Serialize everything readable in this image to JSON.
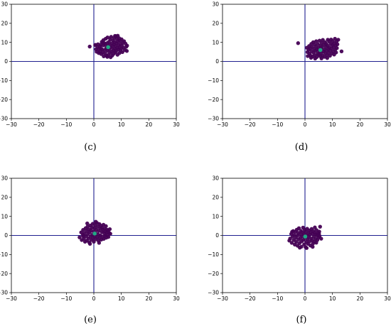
{
  "chart_data": [
    {
      "type": "scatter",
      "caption": "(c)",
      "xlim": [
        -30,
        30
      ],
      "ylim": [
        -30,
        30
      ],
      "xticks": [
        -30,
        -20,
        -10,
        0,
        10,
        20,
        30
      ],
      "yticks": [
        -30,
        -20,
        -10,
        0,
        10,
        20,
        30
      ],
      "reference_lines": {
        "x": 0,
        "y": 0,
        "color": "#1f1f8f"
      },
      "grid": false,
      "colors": {
        "points": "#440154",
        "center": "#22a884",
        "axes_lines": "#1f1f8f"
      },
      "center": [
        5.2,
        7.5
      ],
      "points": [
        [
          -1.5,
          7.8
        ],
        [
          0.6,
          8.7
        ],
        [
          0.8,
          6.4
        ],
        [
          0.5,
          8.6
        ],
        [
          1,
          5.1
        ],
        [
          1.3,
          7.6
        ],
        [
          1.5,
          9
        ],
        [
          1.8,
          6.5
        ],
        [
          1.8,
          4.4
        ],
        [
          2.2,
          7.8
        ],
        [
          2.2,
          5.2
        ],
        [
          2.5,
          8.8
        ],
        [
          2.7,
          3.9
        ],
        [
          2.9,
          10.3
        ],
        [
          3,
          6.3
        ],
        [
          3.2,
          4.8
        ],
        [
          3.4,
          8.4
        ],
        [
          3.5,
          11.2
        ],
        [
          3.6,
          2.7
        ],
        [
          3.8,
          9.5
        ],
        [
          4,
          6
        ],
        [
          4.1,
          4.2
        ],
        [
          4.3,
          8.7
        ],
        [
          4.3,
          11.9
        ],
        [
          4.5,
          7
        ],
        [
          4.6,
          3
        ],
        [
          4.8,
          9.6
        ],
        [
          5,
          5.5
        ],
        [
          5,
          12.6
        ],
        [
          5.2,
          7.9
        ],
        [
          5.3,
          3.4
        ],
        [
          5.5,
          10.3
        ],
        [
          5.6,
          6.4
        ],
        [
          5.8,
          8.7
        ],
        [
          5.9,
          4.5
        ],
        [
          6,
          11.6
        ],
        [
          6.2,
          7.3
        ],
        [
          6.3,
          12.9
        ],
        [
          6.5,
          5.2
        ],
        [
          6.6,
          9.5
        ],
        [
          6.7,
          3.1
        ],
        [
          6.8,
          7.9
        ],
        [
          7,
          11
        ],
        [
          7.1,
          6
        ],
        [
          7.2,
          4
        ],
        [
          7.3,
          8.9
        ],
        [
          7.4,
          12.3
        ],
        [
          7.6,
          6.7
        ],
        [
          7.6,
          10.2
        ],
        [
          7.8,
          4.8
        ],
        [
          7.9,
          8.1
        ],
        [
          8,
          13.3
        ],
        [
          8.1,
          5.5
        ],
        [
          8.3,
          9.5
        ],
        [
          8.4,
          11.8
        ],
        [
          8.5,
          7.1
        ],
        [
          8.6,
          3.5
        ],
        [
          8.8,
          10.5
        ],
        [
          8.9,
          6.3
        ],
        [
          9,
          8.6
        ],
        [
          9.2,
          12.2
        ],
        [
          9.3,
          4.4
        ],
        [
          9.4,
          7.5
        ],
        [
          9.5,
          10.9
        ],
        [
          9.7,
          5.8
        ],
        [
          9.8,
          9.2
        ],
        [
          10,
          6.8
        ],
        [
          10.1,
          11.6
        ],
        [
          10.3,
          8.2
        ],
        [
          10.4,
          4.9
        ],
        [
          10.6,
          9.9
        ],
        [
          10.8,
          7.1
        ],
        [
          11.3,
          6
        ],
        [
          11.5,
          9.4
        ],
        [
          11.8,
          7.7
        ],
        [
          12,
          5.5
        ],
        [
          12.1,
          8.3
        ],
        [
          2.6,
          6.7
        ],
        [
          3.3,
          9.9
        ],
        [
          4.9,
          2.4
        ],
        [
          6.1,
          2.2
        ],
        [
          7.7,
          13.4
        ],
        [
          8.7,
          13.5
        ],
        [
          11,
          10.6
        ]
      ]
    },
    {
      "type": "scatter",
      "caption": "(d)",
      "xlim": [
        -30,
        30
      ],
      "ylim": [
        -30,
        30
      ],
      "xticks": [
        -30,
        -20,
        -10,
        0,
        10,
        20,
        30
      ],
      "yticks": [
        -30,
        -20,
        -10,
        0,
        10,
        20,
        30
      ],
      "reference_lines": {
        "x": 0,
        "y": 0,
        "color": "#1f1f8f"
      },
      "grid": false,
      "colors": {
        "points": "#440154",
        "center": "#22a884",
        "axes_lines": "#1f1f8f"
      },
      "center": [
        5.6,
        6
      ],
      "points": [
        [
          -2.5,
          9.6
        ],
        [
          0.7,
          7.2
        ],
        [
          0.9,
          4.9
        ],
        [
          1,
          2.8
        ],
        [
          1.3,
          6.1
        ],
        [
          1.5,
          8.1
        ],
        [
          1.7,
          4.1
        ],
        [
          1.9,
          6.8
        ],
        [
          2,
          3
        ],
        [
          2.3,
          9.2
        ],
        [
          2.4,
          5.4
        ],
        [
          2.6,
          7.6
        ],
        [
          2.8,
          2.6
        ],
        [
          3,
          10.1
        ],
        [
          3.1,
          4.6
        ],
        [
          3.3,
          6.6
        ],
        [
          3.5,
          8.9
        ],
        [
          3.6,
          3.3
        ],
        [
          3.8,
          5.5
        ],
        [
          4,
          7.8
        ],
        [
          4.1,
          10.6
        ],
        [
          4.3,
          2.3
        ],
        [
          4.4,
          6.2
        ],
        [
          4.6,
          4.1
        ],
        [
          4.7,
          9.1
        ],
        [
          4.9,
          7.1
        ],
        [
          5,
          3.5
        ],
        [
          5.2,
          5.3
        ],
        [
          5.3,
          10.9
        ],
        [
          5.5,
          8.3
        ],
        [
          5.6,
          2.7
        ],
        [
          5.8,
          6.6
        ],
        [
          5.9,
          4.4
        ],
        [
          6.1,
          9.7
        ],
        [
          6.2,
          7.6
        ],
        [
          6.4,
          3.1
        ],
        [
          6.5,
          11.3
        ],
        [
          6.7,
          5.2
        ],
        [
          6.8,
          8.7
        ],
        [
          7,
          6.2
        ],
        [
          7.1,
          2.4
        ],
        [
          7.3,
          10.1
        ],
        [
          7.4,
          4.3
        ],
        [
          7.6,
          7.5
        ],
        [
          7.7,
          9.2
        ],
        [
          7.9,
          5.6
        ],
        [
          8,
          3.3
        ],
        [
          8.2,
          8.4
        ],
        [
          8.3,
          11.4
        ],
        [
          8.5,
          6.5
        ],
        [
          8.6,
          4.5
        ],
        [
          8.8,
          10.4
        ],
        [
          8.9,
          7.4
        ],
        [
          9.1,
          3
        ],
        [
          9.2,
          5.7
        ],
        [
          9.4,
          9.2
        ],
        [
          9.5,
          11.5
        ],
        [
          9.7,
          6.8
        ],
        [
          9.8,
          4.2
        ],
        [
          10,
          8.6
        ],
        [
          10.1,
          10.6
        ],
        [
          10.3,
          5.3
        ],
        [
          10.4,
          7.6
        ],
        [
          10.6,
          3.6
        ],
        [
          10.7,
          9.6
        ],
        [
          10.9,
          11.9
        ],
        [
          11,
          6.2
        ],
        [
          11.2,
          8.4
        ],
        [
          11.3,
          4.7
        ],
        [
          11.5,
          10.5
        ],
        [
          11.6,
          7
        ],
        [
          11.8,
          9
        ],
        [
          12.1,
          11.4
        ],
        [
          13.3,
          5.3
        ],
        [
          2.2,
          1.9
        ],
        [
          3.7,
          1.5
        ],
        [
          6,
          1.6
        ],
        [
          8.1,
          1.8
        ]
      ]
    },
    {
      "type": "scatter",
      "caption": "(e)",
      "xlim": [
        -30,
        30
      ],
      "ylim": [
        -30,
        30
      ],
      "xticks": [
        -30,
        -20,
        -10,
        0,
        10,
        20,
        30
      ],
      "yticks": [
        -30,
        -20,
        -10,
        0,
        10,
        20,
        30
      ],
      "reference_lines": {
        "x": 0,
        "y": 0,
        "color": "#1f1f8f"
      },
      "grid": false,
      "colors": {
        "points": "#440154",
        "center": "#22a884",
        "axes_lines": "#1f1f8f"
      },
      "center": [
        0.3,
        1
      ],
      "points": [
        [
          -5.2,
          -1
        ],
        [
          -4.6,
          1.6
        ],
        [
          -4.4,
          -2.4
        ],
        [
          -4,
          0.4
        ],
        [
          -3.9,
          2.9
        ],
        [
          -3.6,
          -1.6
        ],
        [
          -3.4,
          1.2
        ],
        [
          -3.2,
          -3.3
        ],
        [
          -3,
          3.8
        ],
        [
          -2.8,
          -0.4
        ],
        [
          -2.6,
          2.3
        ],
        [
          -2.5,
          -2.7
        ],
        [
          -2.3,
          4.6
        ],
        [
          -2.1,
          0.7
        ],
        [
          -2,
          -1.5
        ],
        [
          -1.8,
          3.2
        ],
        [
          -1.7,
          -3.6
        ],
        [
          -1.5,
          1.7
        ],
        [
          -1.3,
          5.2
        ],
        [
          -1.2,
          -0.6
        ],
        [
          -1,
          2.7
        ],
        [
          -0.9,
          -2.4
        ],
        [
          -0.7,
          4.2
        ],
        [
          -0.6,
          0.3
        ],
        [
          -0.4,
          6.1
        ],
        [
          -0.3,
          -1.4
        ],
        [
          -0.1,
          2
        ],
        [
          0,
          -3.3
        ],
        [
          0.2,
          3.9
        ],
        [
          0.3,
          -0.4
        ],
        [
          0.5,
          5.4
        ],
        [
          0.6,
          1.3
        ],
        [
          0.8,
          -2
        ],
        [
          0.9,
          3
        ],
        [
          1.1,
          6.6
        ],
        [
          1.2,
          -0.9
        ],
        [
          1.4,
          4.6
        ],
        [
          1.5,
          0.6
        ],
        [
          1.7,
          -2.8
        ],
        [
          1.8,
          2.4
        ],
        [
          2,
          6
        ],
        [
          2.1,
          -1.3
        ],
        [
          2.3,
          3.6
        ],
        [
          2.4,
          0
        ],
        [
          2.6,
          5.1
        ],
        [
          2.7,
          -2.2
        ],
        [
          2.9,
          1.8
        ],
        [
          3,
          4.1
        ],
        [
          3.2,
          -0.7
        ],
        [
          3.3,
          2.9
        ],
        [
          3.5,
          5.6
        ],
        [
          3.6,
          -1.8
        ],
        [
          3.8,
          1.1
        ],
        [
          3.9,
          3.6
        ],
        [
          4.1,
          -0.2
        ],
        [
          4.2,
          2.1
        ],
        [
          4.4,
          4.9
        ],
        [
          4.5,
          -1.2
        ],
        [
          4.7,
          1.5
        ],
        [
          4.8,
          3
        ],
        [
          5,
          0.3
        ],
        [
          5.2,
          2.5
        ],
        [
          5.3,
          -0.8
        ],
        [
          5.6,
          1.3
        ],
        [
          5.8,
          3.3
        ],
        [
          6,
          0.9
        ],
        [
          -3.9,
          -0.4
        ],
        [
          -1.4,
          -4.4
        ],
        [
          1.9,
          -3.9
        ],
        [
          -2.4,
          6.3
        ],
        [
          0.7,
          7.2
        ]
      ]
    },
    {
      "type": "scatter",
      "caption": "(f)",
      "xlim": [
        -30,
        30
      ],
      "ylim": [
        -30,
        30
      ],
      "xticks": [
        -30,
        -20,
        -10,
        0,
        10,
        20,
        30
      ],
      "yticks": [
        -30,
        -20,
        -10,
        0,
        10,
        20,
        30
      ],
      "reference_lines": {
        "x": 0,
        "y": 0,
        "color": "#1f1f8f"
      },
      "grid": false,
      "colors": {
        "points": "#440154",
        "center": "#22a884",
        "axes_lines": "#1f1f8f"
      },
      "center": [
        0.1,
        -0.6
      ],
      "points": [
        [
          -5.4,
          -1.6
        ],
        [
          -5,
          0.8
        ],
        [
          -4.8,
          -3.9
        ],
        [
          -4.5,
          -0.6
        ],
        [
          -4.3,
          2.3
        ],
        [
          -4.1,
          -2.4
        ],
        [
          -3.9,
          0.3
        ],
        [
          -3.7,
          -4.8
        ],
        [
          -3.5,
          1.9
        ],
        [
          -3.3,
          -1.3
        ],
        [
          -3.2,
          -3.4
        ],
        [
          -3,
          3
        ],
        [
          -2.8,
          -0.1
        ],
        [
          -2.7,
          -5.4
        ],
        [
          -2.5,
          1.3
        ],
        [
          -2.3,
          -2.1
        ],
        [
          -2.2,
          3.8
        ],
        [
          -2,
          -4.1
        ],
        [
          -1.8,
          0.6
        ],
        [
          -1.7,
          -1.3
        ],
        [
          -1.5,
          2.4
        ],
        [
          -1.3,
          -5.9
        ],
        [
          -1.2,
          -3.1
        ],
        [
          -1,
          1.6
        ],
        [
          -0.9,
          -0.4
        ],
        [
          -0.7,
          4.1
        ],
        [
          -0.6,
          -2.3
        ],
        [
          -0.4,
          0.8
        ],
        [
          -0.3,
          -4.7
        ],
        [
          -0.1,
          2.9
        ],
        [
          0,
          -1.3
        ],
        [
          0.2,
          -6.1
        ],
        [
          0.3,
          1.9
        ],
        [
          0.5,
          -3.4
        ],
        [
          0.6,
          0.1
        ],
        [
          0.8,
          3.5
        ],
        [
          0.9,
          -1.9
        ],
        [
          1.1,
          -4.4
        ],
        [
          1.2,
          1.2
        ],
        [
          1.4,
          -0.9
        ],
        [
          1.5,
          2.6
        ],
        [
          1.7,
          -3.1
        ],
        [
          1.8,
          0.4
        ],
        [
          2,
          -5.3
        ],
        [
          2.1,
          1.8
        ],
        [
          2.3,
          -1.6
        ],
        [
          2.4,
          3.4
        ],
        [
          2.6,
          -2.6
        ],
        [
          2.7,
          0.8
        ],
        [
          2.9,
          -4.3
        ],
        [
          3,
          2.3
        ],
        [
          3.2,
          -0.7
        ],
        [
          3.3,
          -3.3
        ],
        [
          3.5,
          1.4
        ],
        [
          3.6,
          4.2
        ],
        [
          3.8,
          -1.9
        ],
        [
          3.9,
          0.6
        ],
        [
          4.1,
          -3.8
        ],
        [
          4.2,
          2.8
        ],
        [
          4.4,
          -0.1
        ],
        [
          4.5,
          -2.4
        ],
        [
          4.7,
          1.3
        ],
        [
          4.9,
          -1.1
        ],
        [
          5.1,
          0.9
        ],
        [
          5.3,
          -0.3
        ],
        [
          5.5,
          4.6
        ],
        [
          5.2,
          2
        ],
        [
          -5.7,
          -2.7
        ],
        [
          -1.9,
          -6.4
        ],
        [
          2.8,
          -6
        ],
        [
          -4.7,
          1.9
        ],
        [
          0.6,
          -6.6
        ],
        [
          5.9,
          -1.7
        ]
      ]
    }
  ]
}
